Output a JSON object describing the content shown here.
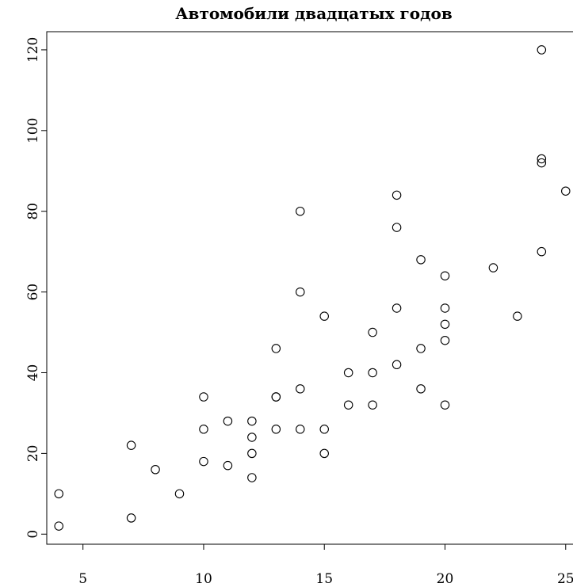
{
  "chart_data": {
    "type": "scatter",
    "title": "Автомобили двадцатых годов",
    "xlabel": "",
    "ylabel": "",
    "xlim": [
      3.5,
      25.5
    ],
    "ylim": [
      -2.5,
      124.5
    ],
    "x_ticks": [
      5,
      10,
      15,
      20,
      25
    ],
    "y_ticks": [
      0,
      20,
      40,
      60,
      80,
      100,
      120
    ],
    "x_tick_labels": [
      "5",
      "10",
      "15",
      "20",
      "25"
    ],
    "y_tick_labels": [
      "0",
      "20",
      "40",
      "60",
      "80",
      "100",
      "120"
    ],
    "grid": false,
    "legend": "none",
    "marker": "open-circle",
    "points": [
      [
        4,
        2
      ],
      [
        4,
        10
      ],
      [
        7,
        4
      ],
      [
        7,
        22
      ],
      [
        8,
        16
      ],
      [
        9,
        10
      ],
      [
        10,
        18
      ],
      [
        10,
        26
      ],
      [
        10,
        34
      ],
      [
        11,
        17
      ],
      [
        11,
        28
      ],
      [
        12,
        14
      ],
      [
        12,
        20
      ],
      [
        12,
        24
      ],
      [
        12,
        28
      ],
      [
        13,
        26
      ],
      [
        13,
        34
      ],
      [
        13,
        34
      ],
      [
        13,
        46
      ],
      [
        14,
        26
      ],
      [
        14,
        36
      ],
      [
        14,
        60
      ],
      [
        14,
        80
      ],
      [
        15,
        20
      ],
      [
        15,
        26
      ],
      [
        15,
        54
      ],
      [
        16,
        32
      ],
      [
        16,
        40
      ],
      [
        17,
        32
      ],
      [
        17,
        40
      ],
      [
        17,
        50
      ],
      [
        18,
        42
      ],
      [
        18,
        56
      ],
      [
        18,
        76
      ],
      [
        18,
        84
      ],
      [
        19,
        36
      ],
      [
        19,
        46
      ],
      [
        19,
        68
      ],
      [
        20,
        32
      ],
      [
        20,
        48
      ],
      [
        20,
        52
      ],
      [
        20,
        56
      ],
      [
        20,
        64
      ],
      [
        22,
        66
      ],
      [
        23,
        54
      ],
      [
        24,
        70
      ],
      [
        24,
        92
      ],
      [
        24,
        93
      ],
      [
        24,
        120
      ],
      [
        25,
        85
      ]
    ]
  }
}
